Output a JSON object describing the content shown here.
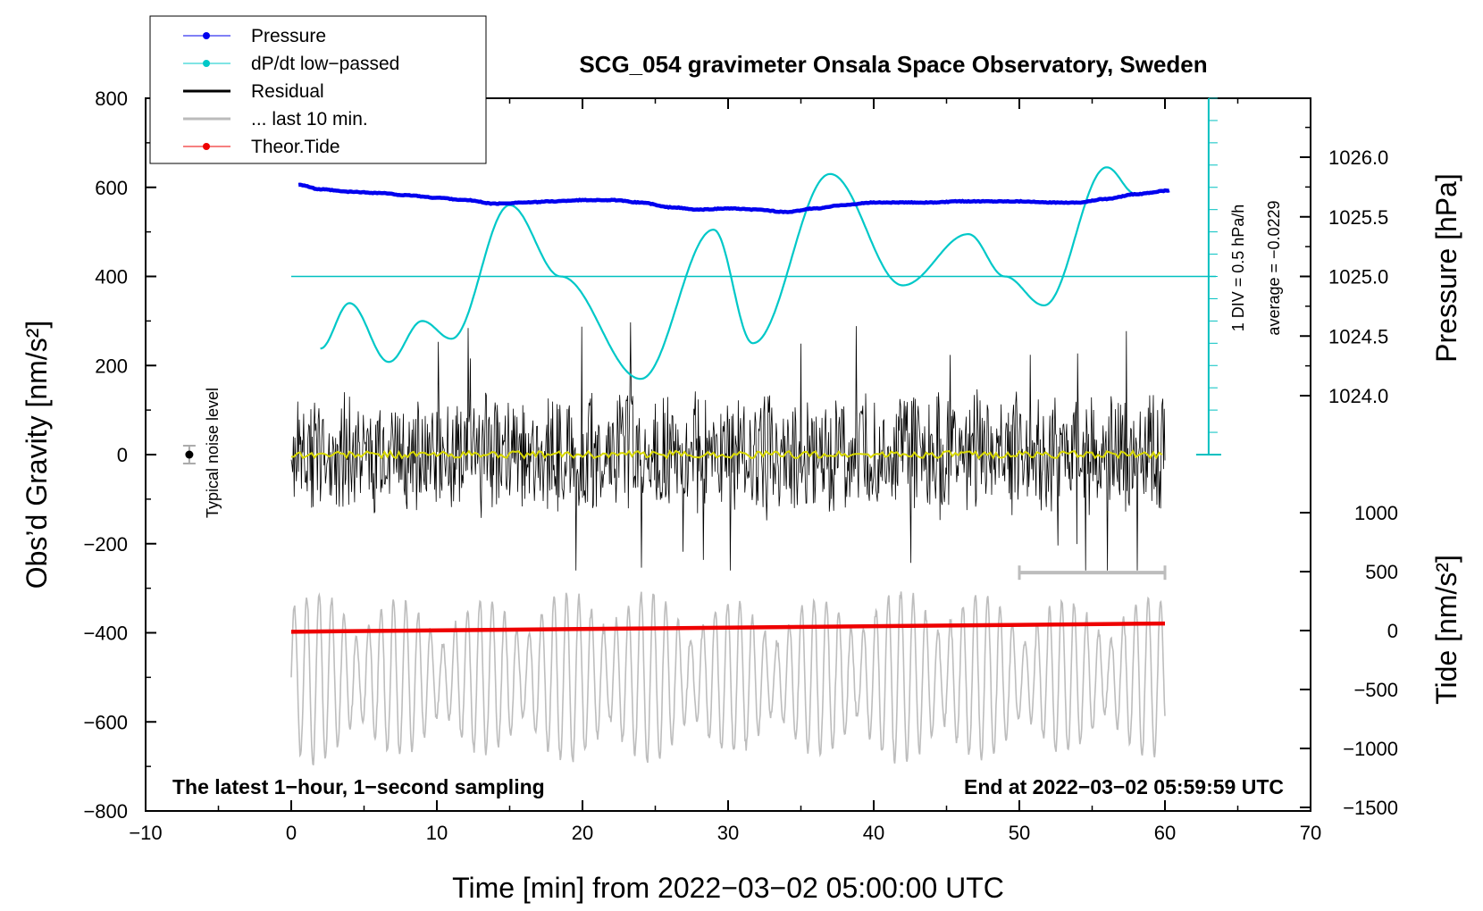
{
  "chart_data": {
    "type": "line",
    "title": "SCG_054 gravimeter Onsala Space Observatory, Sweden",
    "xlabel": "Time [min] from 2022−03−02 05:00:00 UTC",
    "ylabel_left": "Obs’d Gravity [nm/s²]",
    "ylabel_right_top": "Pressure [hPa]",
    "ylabel_right_bottom": "Tide [nm/s²]",
    "xlim": [
      -10,
      70
    ],
    "ylim": [
      -800,
      800
    ],
    "x_ticks": [
      "−10",
      "0",
      "10",
      "20",
      "30",
      "40",
      "50",
      "60",
      "70"
    ],
    "y_ticks": [
      "800",
      "600",
      "400",
      "200",
      "0",
      "−200",
      "−400",
      "−600",
      "−800"
    ],
    "pressure_ticks": [
      "1026.0",
      "1025.5",
      "1025.0",
      "1024.5",
      "1024.0"
    ],
    "tide_ticks": [
      "1000",
      "500",
      "0",
      "−500",
      "−1000",
      "−1500"
    ],
    "legend": [
      {
        "label": "Pressure",
        "color": "#0000ee",
        "marker": true
      },
      {
        "label": "dP/dt low−passed",
        "color": "#00c8c8",
        "marker": true
      },
      {
        "label": "Residual",
        "color": "#000000",
        "marker": false
      },
      {
        "label": "... last 10 min.",
        "color": "#bbbbbb",
        "marker": false
      },
      {
        "label": "Theor.Tide",
        "color": "#ee0000",
        "marker": true
      }
    ],
    "annotations": {
      "noise_label": "Typical noise level",
      "dpdt_scale": "1 DIV = 0.5 hPa/h",
      "dpdt_average": "average = −0.0229",
      "bottom_left": "The latest 1−hour, 1−second sampling",
      "bottom_right": "End at 2022−03−02 05:59:59 UTC"
    },
    "pressure_series": {
      "unit": "hPa",
      "t": [
        0.5,
        2,
        4,
        6,
        8,
        10,
        12,
        14,
        16,
        18,
        20,
        22,
        24,
        26,
        28,
        30,
        32,
        34,
        36,
        38,
        40,
        42,
        44,
        46,
        48,
        50,
        52,
        54,
        56,
        58,
        60.3
      ],
      "values": [
        1025.77,
        1025.73,
        1025.71,
        1025.7,
        1025.68,
        1025.66,
        1025.64,
        1025.61,
        1025.62,
        1025.63,
        1025.64,
        1025.64,
        1025.62,
        1025.58,
        1025.56,
        1025.57,
        1025.56,
        1025.54,
        1025.57,
        1025.6,
        1025.62,
        1025.62,
        1025.62,
        1025.63,
        1025.63,
        1025.63,
        1025.62,
        1025.62,
        1025.65,
        1025.69,
        1025.72
      ]
    },
    "dpdt_series": {
      "unit": "nm/s² plot scale",
      "t": [
        2,
        4,
        6.7,
        9,
        11,
        15,
        18.5,
        24,
        29,
        31.7,
        37,
        42,
        46.5,
        49,
        51.7,
        56,
        58
      ],
      "values": [
        238,
        340,
        208,
        300,
        260,
        560,
        400,
        170,
        505,
        250,
        630,
        380,
        495,
        400,
        335,
        645,
        585
      ]
    },
    "dpdt_zero_level": 400,
    "residual_envelope": {
      "amplitude_typical": 120,
      "spike_max": 320,
      "spike_min": -260
    },
    "residual_running_mean": 0,
    "noise_level": {
      "center": 0,
      "half_range": 20,
      "x": -7
    },
    "tide_series": {
      "t": [
        0,
        60
      ],
      "values": [
        -10,
        60
      ],
      "unit": "nm/s²"
    },
    "last10min_bar": {
      "t_start": 50,
      "t_end": 60
    }
  }
}
